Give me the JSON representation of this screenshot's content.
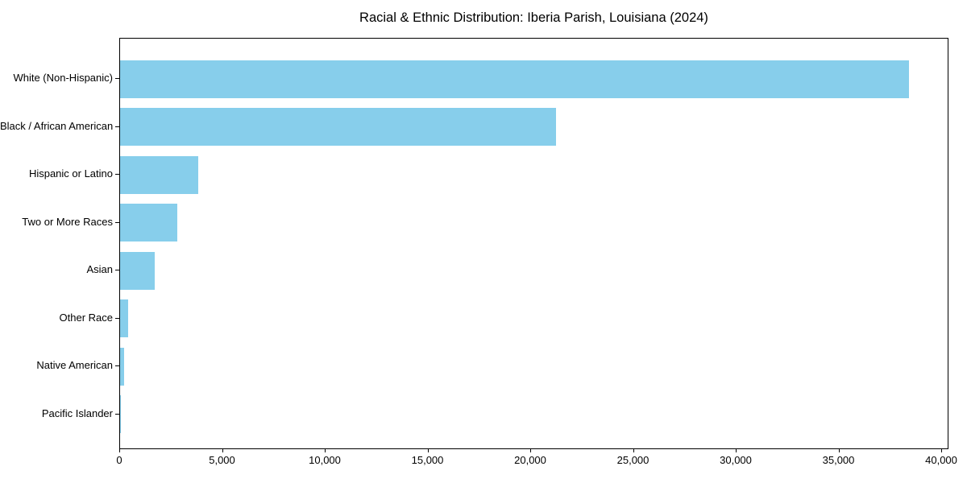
{
  "chart": {
    "title": "Racial & Ethnic Distribution: Iberia Parish, Louisiana (2024)"
  },
  "chart_data": {
    "type": "bar",
    "orientation": "horizontal",
    "title": "Racial & Ethnic Distribution: Iberia Parish, Louisiana (2024)",
    "categories": [
      "White (Non-Hispanic)",
      "Black / African American",
      "Hispanic or Latino",
      "Two or More Races",
      "Asian",
      "Other Race",
      "Native American",
      "Pacific Islander"
    ],
    "values": [
      38400,
      21200,
      3800,
      2800,
      1700,
      400,
      200,
      25
    ],
    "bar_color": "#87CEEB",
    "xlabel": "",
    "ylabel": "",
    "xlim": [
      0,
      40000
    ],
    "x_ticks": [
      0,
      5000,
      10000,
      15000,
      20000,
      25000,
      30000,
      35000,
      40000
    ],
    "x_tick_labels": [
      "0",
      "5,000",
      "10,000",
      "15,000",
      "20,000",
      "25,000",
      "30,000",
      "35,000",
      "40,000"
    ],
    "grid": false,
    "legend": "none",
    "value_labels": "none"
  }
}
